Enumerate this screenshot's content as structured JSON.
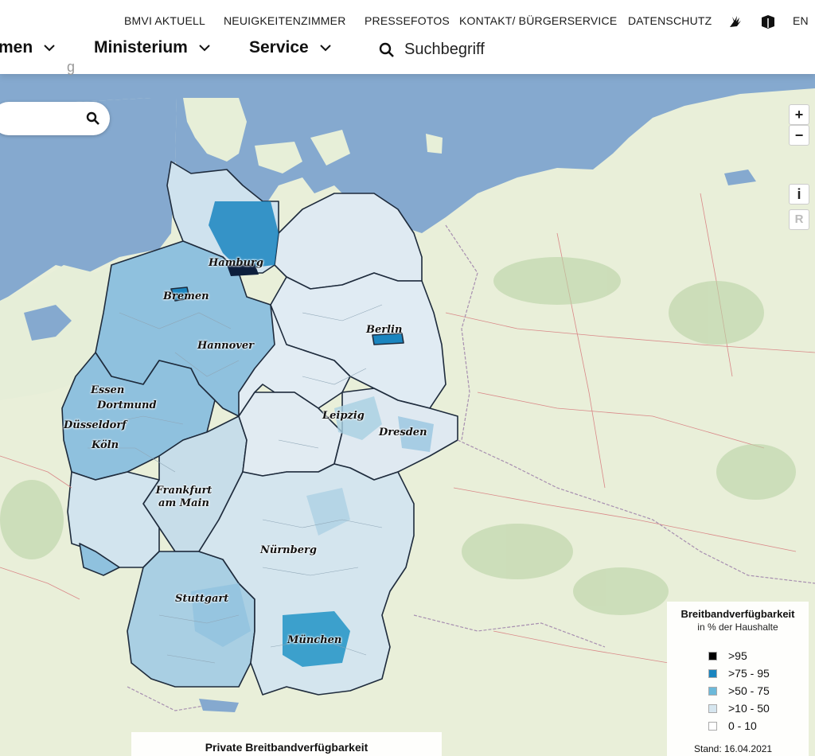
{
  "header": {
    "top_links": [
      "BMVI AKTUELL",
      "NEUIGKEITENZIMMER",
      "PRESSEFOTOS",
      "KONTAKT/ BÜRGERSERVICE",
      "DATENSCHUTZ"
    ],
    "lang": "EN",
    "main_nav": [
      "men",
      "Ministerium",
      "Service"
    ],
    "search_placeholder": "Suchbegriff",
    "peek_text": "g"
  },
  "map": {
    "cities": [
      "Hamburg",
      "Bremen",
      "Berlin",
      "Hannover",
      "Essen",
      "Dortmund",
      "Düsseldorf",
      "Köln",
      "Leipzig",
      "Dresden",
      "Frankfurt am Main",
      "Nürnberg",
      "Stuttgart",
      "München"
    ],
    "controls": {
      "zoom_in": "+",
      "zoom_out": "−",
      "info": "i",
      "reset": "R"
    }
  },
  "legend": {
    "title": "Breitbandverfügbarkeit",
    "subtitle": "in % der Haushalte",
    "classes": [
      {
        "label": ">95",
        "color": "#000000"
      },
      {
        "label": ">75 - 95",
        "color": "#1a85bf"
      },
      {
        "label": ">50 - 75",
        "color": "#6cb9da"
      },
      {
        "label": ">10 - 50",
        "color": "#d6e6ef"
      },
      {
        "label": "0 - 10",
        "color": "#ffffff"
      }
    ],
    "date": "Stand: 16.04.2021"
  },
  "caption": "Private Breitbandverfügbarkeit"
}
